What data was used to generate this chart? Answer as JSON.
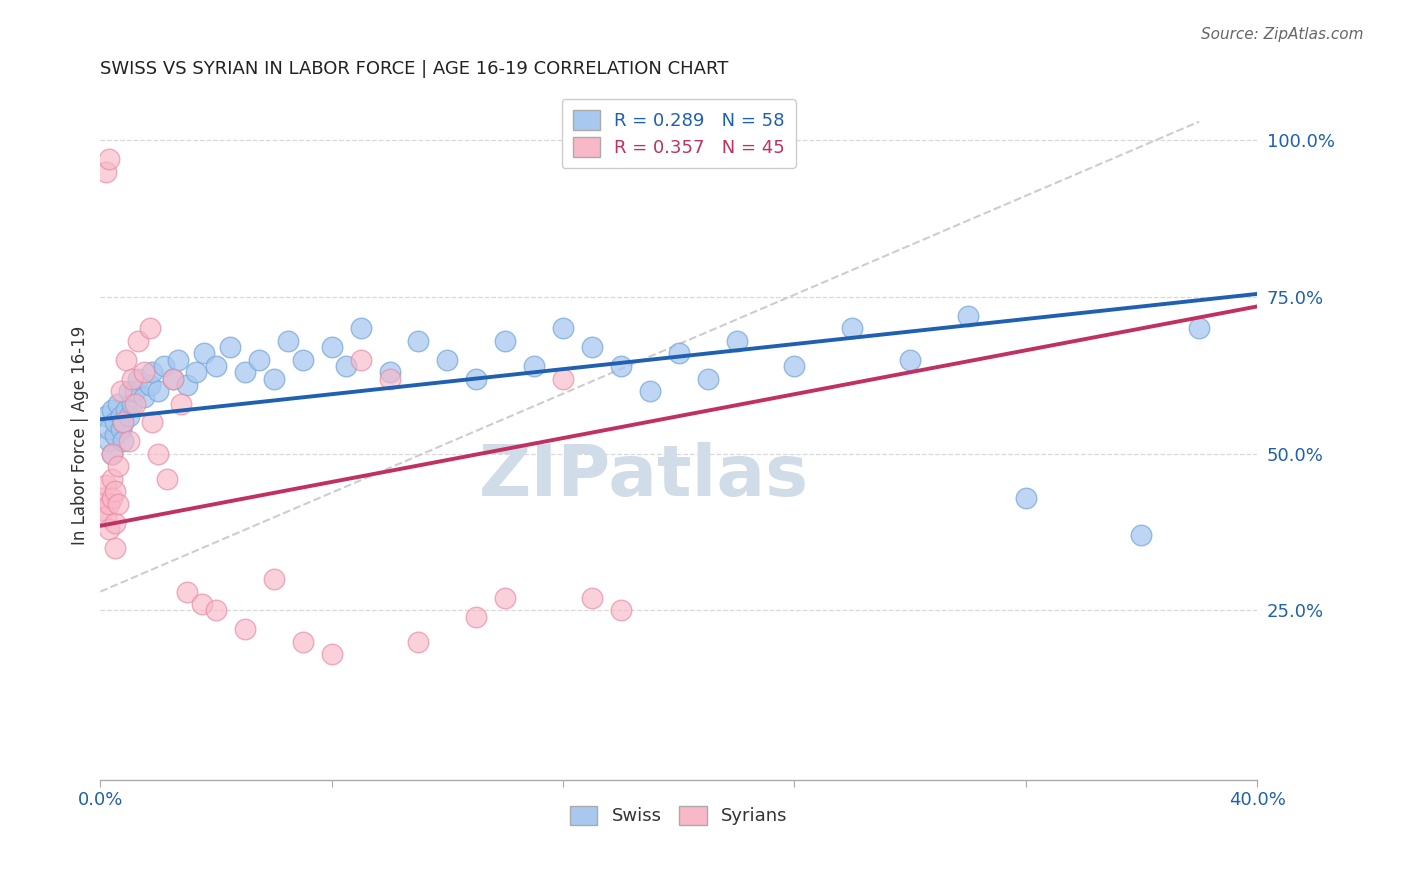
{
  "title": "SWISS VS SYRIAN IN LABOR FORCE | AGE 16-19 CORRELATION CHART",
  "source": "Source: ZipAtlas.com",
  "ylabel": "In Labor Force | Age 16-19",
  "xlim": [
    0.0,
    0.4
  ],
  "ylim": [
    -0.02,
    1.08
  ],
  "ytick_labels_right": [
    "100.0%",
    "75.0%",
    "50.0%",
    "25.0%"
  ],
  "ytick_positions_right": [
    1.0,
    0.75,
    0.5,
    0.25
  ],
  "swiss_R": 0.289,
  "swiss_N": 58,
  "syrian_R": 0.357,
  "syrian_N": 45,
  "swiss_color": "#a8c8f0",
  "swiss_edge_color": "#7aaad8",
  "syrian_color": "#f8b8c8",
  "syrian_edge_color": "#e888a0",
  "swiss_line_color": "#2060b0",
  "syrian_line_color": "#c03060",
  "ref_line_color": "#c8c8c8",
  "background_color": "#ffffff",
  "grid_color": "#d8d8d8",
  "watermark_color": "#d0dce8",
  "swiss_x": [
    0.002,
    0.003,
    0.003,
    0.004,
    0.004,
    0.005,
    0.005,
    0.006,
    0.007,
    0.007,
    0.008,
    0.008,
    0.009,
    0.01,
    0.01,
    0.011,
    0.012,
    0.013,
    0.015,
    0.017,
    0.018,
    0.02,
    0.022,
    0.025,
    0.027,
    0.03,
    0.033,
    0.036,
    0.04,
    0.045,
    0.05,
    0.055,
    0.06,
    0.065,
    0.07,
    0.08,
    0.085,
    0.09,
    0.1,
    0.11,
    0.12,
    0.13,
    0.14,
    0.15,
    0.16,
    0.17,
    0.18,
    0.19,
    0.2,
    0.21,
    0.22,
    0.24,
    0.26,
    0.28,
    0.3,
    0.32,
    0.36,
    0.38
  ],
  "swiss_y": [
    0.56,
    0.52,
    0.54,
    0.5,
    0.57,
    0.53,
    0.55,
    0.58,
    0.54,
    0.56,
    0.52,
    0.55,
    0.57,
    0.6,
    0.56,
    0.58,
    0.6,
    0.62,
    0.59,
    0.61,
    0.63,
    0.6,
    0.64,
    0.62,
    0.65,
    0.61,
    0.63,
    0.66,
    0.64,
    0.67,
    0.63,
    0.65,
    0.62,
    0.68,
    0.65,
    0.67,
    0.64,
    0.7,
    0.63,
    0.68,
    0.65,
    0.62,
    0.68,
    0.64,
    0.7,
    0.67,
    0.64,
    0.6,
    0.66,
    0.62,
    0.68,
    0.64,
    0.7,
    0.65,
    0.72,
    0.43,
    0.37,
    0.7
  ],
  "syrian_x": [
    0.001,
    0.001,
    0.002,
    0.002,
    0.002,
    0.003,
    0.003,
    0.003,
    0.004,
    0.004,
    0.004,
    0.005,
    0.005,
    0.005,
    0.006,
    0.006,
    0.007,
    0.008,
    0.009,
    0.01,
    0.011,
    0.012,
    0.013,
    0.015,
    0.017,
    0.018,
    0.02,
    0.023,
    0.025,
    0.028,
    0.03,
    0.035,
    0.04,
    0.05,
    0.06,
    0.07,
    0.08,
    0.09,
    0.1,
    0.11,
    0.13,
    0.14,
    0.16,
    0.17,
    0.18
  ],
  "syrian_y": [
    0.43,
    0.41,
    0.95,
    0.45,
    0.4,
    0.97,
    0.42,
    0.38,
    0.5,
    0.46,
    0.43,
    0.39,
    0.44,
    0.35,
    0.48,
    0.42,
    0.6,
    0.55,
    0.65,
    0.52,
    0.62,
    0.58,
    0.68,
    0.63,
    0.7,
    0.55,
    0.5,
    0.46,
    0.62,
    0.58,
    0.28,
    0.26,
    0.25,
    0.22,
    0.3,
    0.2,
    0.18,
    0.65,
    0.62,
    0.2,
    0.24,
    0.27,
    0.62,
    0.27,
    0.25
  ],
  "swiss_trend_x0": 0.0,
  "swiss_trend_y0": 0.555,
  "swiss_trend_x1": 0.4,
  "swiss_trend_y1": 0.755,
  "syrian_trend_x0": 0.0,
  "syrian_trend_y0": 0.385,
  "syrian_trend_x1": 0.4,
  "syrian_trend_y1": 0.735,
  "ref_line_x0": 0.0,
  "ref_line_y0": 0.28,
  "ref_line_x1": 0.38,
  "ref_line_y1": 1.03
}
